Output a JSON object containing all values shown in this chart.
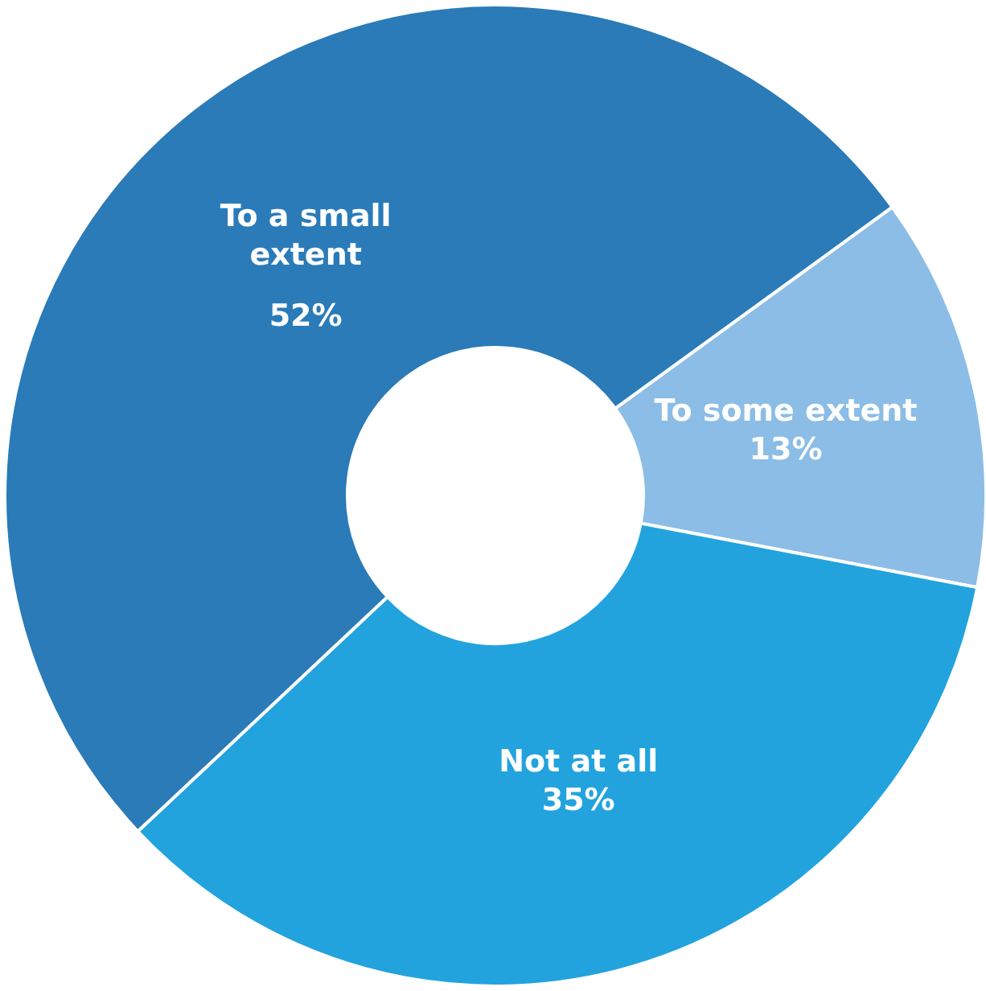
{
  "chart_data": {
    "type": "donut",
    "categories": [
      "To some extent",
      "Not at all",
      "To a small extent"
    ],
    "values": [
      13,
      35,
      52
    ],
    "value_labels": [
      "13%",
      "35%",
      "52%"
    ],
    "colors": [
      "#8bbde6",
      "#22a3de",
      "#2a7bb8"
    ]
  }
}
